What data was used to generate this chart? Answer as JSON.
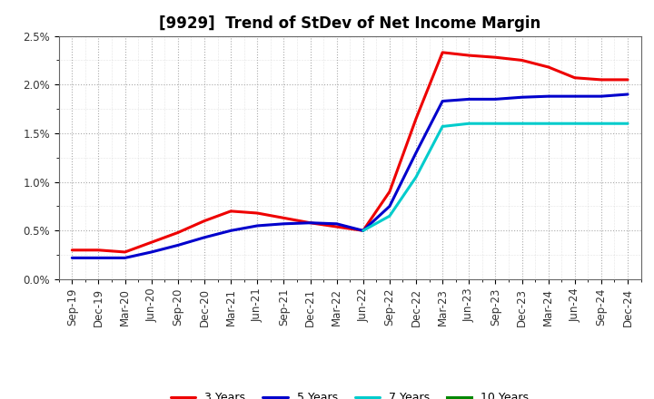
{
  "title": "[9929]  Trend of StDev of Net Income Margin",
  "x_labels": [
    "Sep-19",
    "Dec-19",
    "Mar-20",
    "Jun-20",
    "Sep-20",
    "Dec-20",
    "Mar-21",
    "Jun-21",
    "Sep-21",
    "Dec-21",
    "Mar-22",
    "Jun-22",
    "Sep-22",
    "Dec-22",
    "Mar-23",
    "Jun-23",
    "Sep-23",
    "Dec-23",
    "Mar-24",
    "Jun-24",
    "Sep-24",
    "Dec-24"
  ],
  "series": {
    "3 Years": {
      "color": "#EE0000",
      "values": [
        0.003,
        0.003,
        0.0028,
        0.0038,
        0.0048,
        0.006,
        0.007,
        0.0068,
        0.0063,
        0.0058,
        0.0054,
        0.005,
        0.009,
        0.0165,
        0.0233,
        0.023,
        0.0228,
        0.0225,
        0.0218,
        0.0207,
        0.0205,
        0.0205
      ]
    },
    "5 Years": {
      "color": "#0000CC",
      "values": [
        0.0022,
        0.0022,
        0.0022,
        0.0028,
        0.0035,
        0.0043,
        0.005,
        0.0055,
        0.0057,
        0.0058,
        0.0057,
        0.005,
        0.0075,
        0.013,
        0.0183,
        0.0185,
        0.0185,
        0.0187,
        0.0188,
        0.0188,
        0.0188,
        0.019
      ]
    },
    "7 Years": {
      "color": "#00CCCC",
      "values": [
        null,
        null,
        null,
        null,
        null,
        null,
        null,
        null,
        null,
        null,
        null,
        0.005,
        0.0065,
        0.0105,
        0.0157,
        0.016,
        0.016,
        0.016,
        0.016,
        0.016,
        0.016,
        0.016
      ]
    },
    "10 Years": {
      "color": "#008800",
      "values": [
        null,
        null,
        null,
        null,
        null,
        null,
        null,
        null,
        null,
        null,
        null,
        null,
        null,
        null,
        null,
        null,
        null,
        null,
        null,
        null,
        null,
        null
      ]
    }
  },
  "ylim": [
    0.0,
    0.025
  ],
  "yticks": [
    0.0,
    0.005,
    0.01,
    0.015,
    0.02,
    0.025
  ],
  "ytick_labels": [
    "0.0%",
    "0.5%",
    "1.0%",
    "1.5%",
    "2.0%",
    "2.5%"
  ],
  "background_color": "#FFFFFF",
  "plot_bg_color": "#FFFFFF",
  "grid_color": "#AAAAAA",
  "title_fontsize": 12,
  "legend_fontsize": 9,
  "tick_fontsize": 8.5
}
